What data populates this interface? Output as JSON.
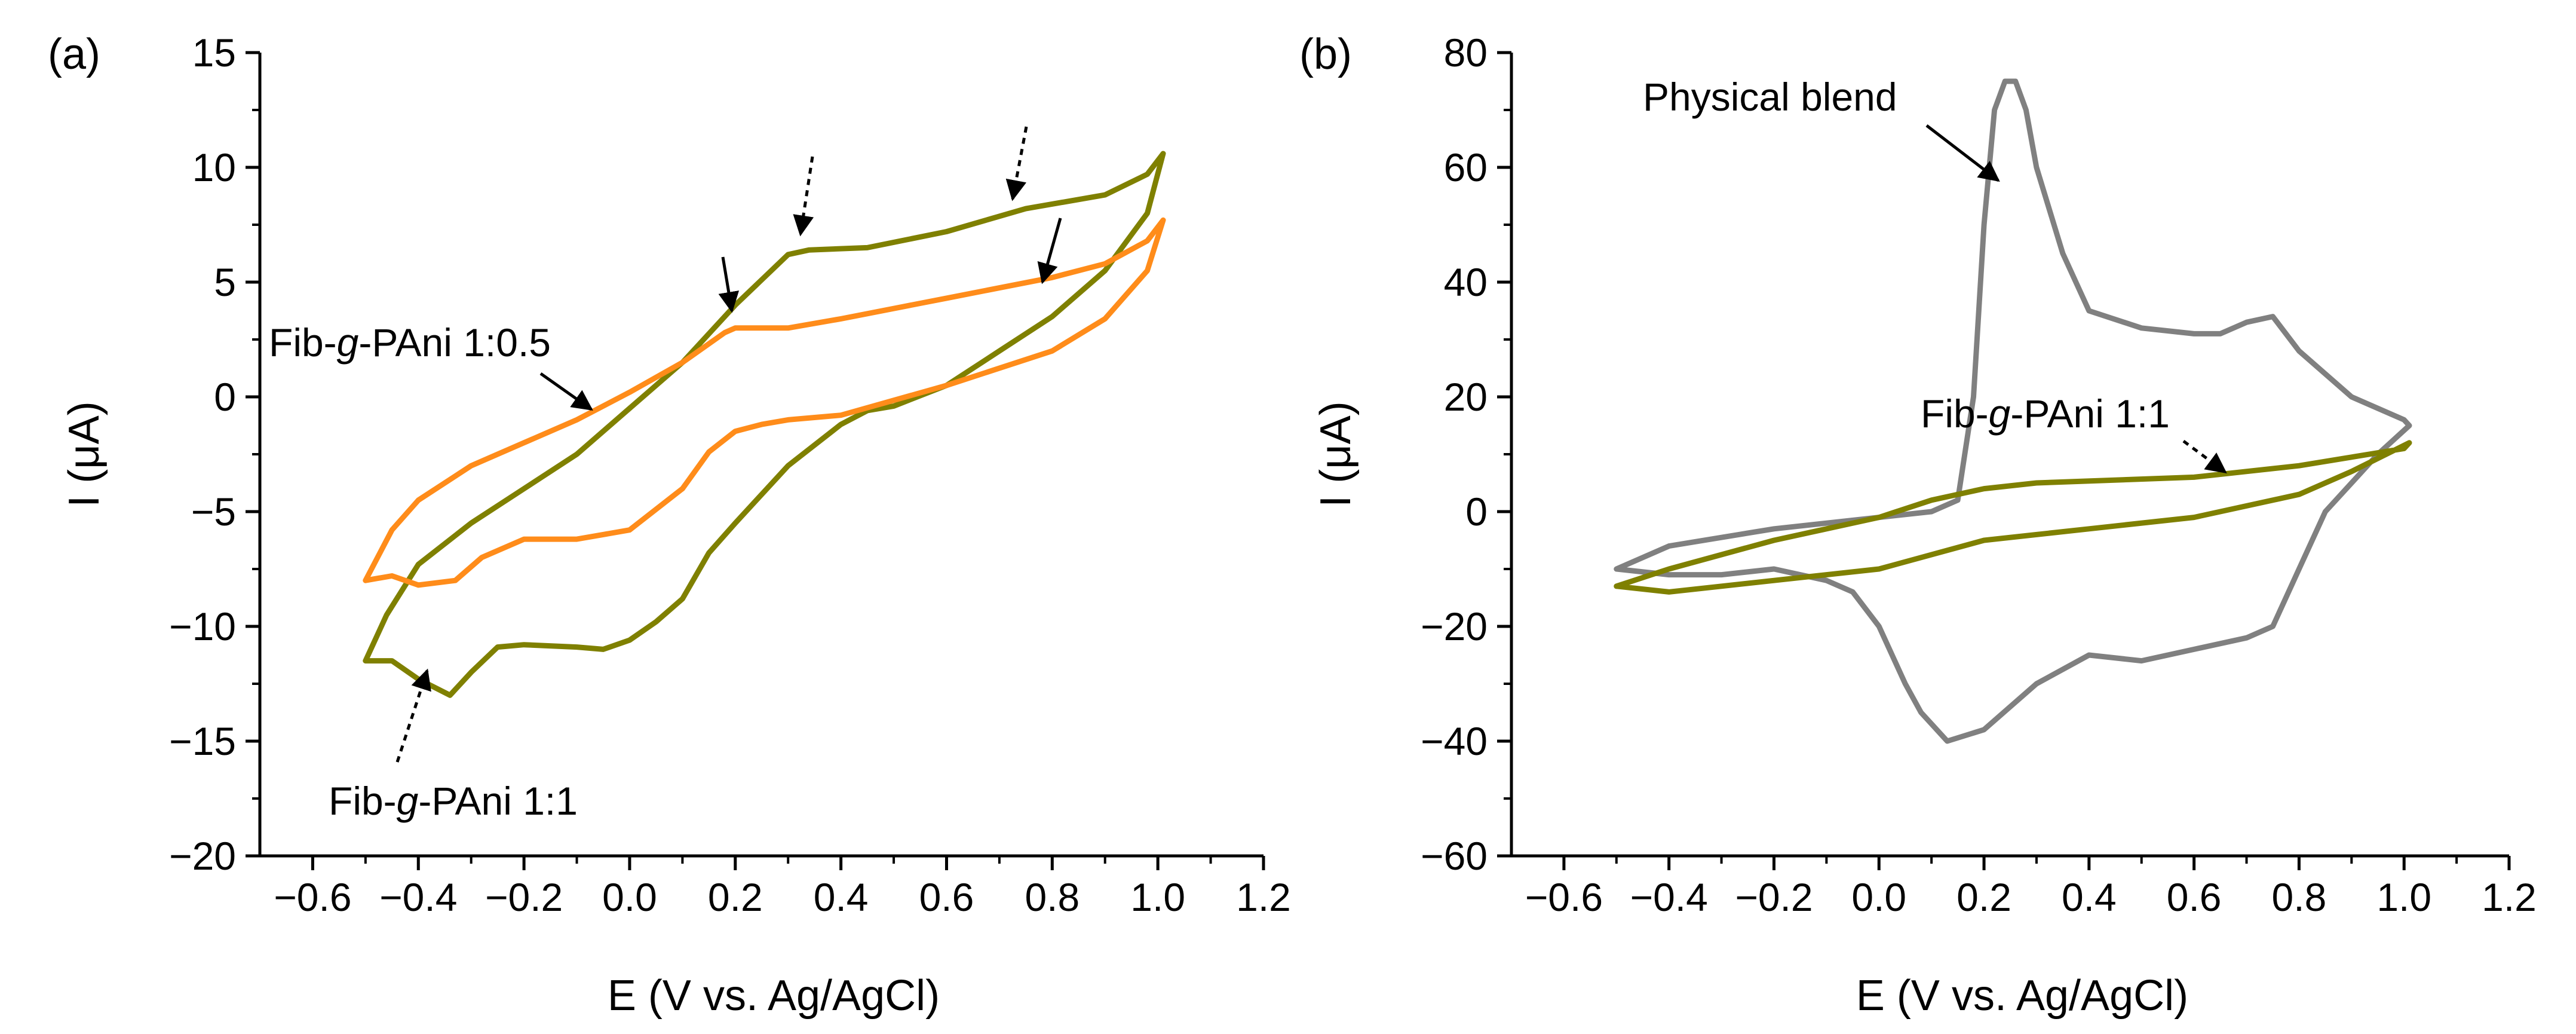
{
  "chart_data": [
    {
      "type": "line",
      "panel_label": "(a)",
      "xlabel": "E (V vs. Ag/AgCl)",
      "ylabel": "I (μA)",
      "xlim": [
        -0.7,
        1.2
      ],
      "ylim": [
        -20,
        15
      ],
      "xticks": [
        -0.6,
        -0.4,
        -0.2,
        0.0,
        0.2,
        0.4,
        0.6,
        0.8,
        1.0,
        1.2
      ],
      "xtick_labels": [
        "−0.6",
        "−0.4",
        "−0.2",
        "0.0",
        "0.2",
        "0.4",
        "0.6",
        "0.8",
        "1.0",
        "1.2"
      ],
      "yticks": [
        -20,
        -15,
        -10,
        -5,
        0,
        5,
        10,
        15
      ],
      "ytick_labels": [
        "−20",
        "−15",
        "−10",
        "−5",
        "0",
        "5",
        "10",
        "15"
      ],
      "grid": false,
      "series": [
        {
          "name": "Fib-g-PAni 1:1",
          "color": "#7f8000",
          "x": [
            -0.5,
            -0.46,
            -0.4,
            -0.3,
            -0.2,
            -0.1,
            0.0,
            0.1,
            0.2,
            0.3,
            0.34,
            0.45,
            0.6,
            0.75,
            0.9,
            0.98,
            1.01,
            0.98,
            0.9,
            0.8,
            0.7,
            0.6,
            0.5,
            0.45,
            0.4,
            0.3,
            0.2,
            0.15,
            0.1,
            0.05,
            0.0,
            -0.05,
            -0.1,
            -0.2,
            -0.25,
            -0.3,
            -0.34,
            -0.4,
            -0.45,
            -0.5
          ],
          "y": [
            -11.5,
            -9.5,
            -7.3,
            -5.5,
            -4.0,
            -2.5,
            -0.5,
            1.5,
            4.0,
            6.2,
            6.4,
            6.5,
            7.2,
            8.2,
            8.8,
            9.7,
            10.6,
            8.0,
            5.5,
            3.5,
            2.0,
            0.5,
            -0.4,
            -0.6,
            -1.2,
            -3.0,
            -5.5,
            -6.8,
            -8.8,
            -9.8,
            -10.6,
            -11.0,
            -10.9,
            -10.8,
            -10.9,
            -12.0,
            -13.0,
            -12.3,
            -11.5,
            -11.5
          ]
        },
        {
          "name": "Fib-g-PAni 1:0.5",
          "color": "#ff8c1a",
          "x": [
            -0.5,
            -0.45,
            -0.4,
            -0.3,
            -0.2,
            -0.1,
            0.0,
            0.1,
            0.18,
            0.2,
            0.3,
            0.4,
            0.6,
            0.8,
            0.9,
            0.98,
            1.01,
            0.98,
            0.9,
            0.8,
            0.6,
            0.4,
            0.3,
            0.25,
            0.2,
            0.15,
            0.1,
            0.0,
            -0.1,
            -0.2,
            -0.28,
            -0.33,
            -0.4,
            -0.45,
            -0.5
          ],
          "y": [
            -8.0,
            -5.8,
            -4.5,
            -3.0,
            -2.0,
            -1.0,
            0.2,
            1.5,
            2.8,
            3.0,
            3.0,
            3.4,
            4.3,
            5.2,
            5.8,
            6.8,
            7.7,
            5.5,
            3.4,
            2.0,
            0.5,
            -0.8,
            -1.0,
            -1.2,
            -1.5,
            -2.4,
            -4.0,
            -5.8,
            -6.2,
            -6.2,
            -7.0,
            -8.0,
            -8.2,
            -7.8,
            -8.0
          ]
        }
      ],
      "annotations": [
        {
          "text": "Fib-g-PAni 1:0.5",
          "target_series": "Fib-g-PAni 1:0.5",
          "arrow": "solid"
        },
        {
          "text": "Fib-g-PAni 1:1",
          "target_series": "Fib-g-PAni 1:1",
          "arrow": "dotted"
        }
      ],
      "peak_arrows": [
        {
          "style": "solid",
          "x": 0.2,
          "y": 2.8
        },
        {
          "style": "solid",
          "x": 0.8,
          "y": 4.9
        },
        {
          "style": "dotted",
          "x": 0.34,
          "y": 7.0
        },
        {
          "style": "dotted",
          "x": 0.74,
          "y": 8.5
        }
      ]
    },
    {
      "type": "line",
      "panel_label": "(b)",
      "xlabel": "E (V vs. Ag/AgCl)",
      "ylabel": "I (μA)",
      "xlim": [
        -0.7,
        1.2
      ],
      "ylim": [
        -60,
        80
      ],
      "xticks": [
        -0.6,
        -0.4,
        -0.2,
        0.0,
        0.2,
        0.4,
        0.6,
        0.8,
        1.0,
        1.2
      ],
      "xtick_labels": [
        "−0.6",
        "−0.4",
        "−0.2",
        "0.0",
        "0.2",
        "0.4",
        "0.6",
        "0.8",
        "1.0",
        "1.2"
      ],
      "yticks": [
        -60,
        -40,
        -20,
        0,
        20,
        40,
        60,
        80
      ],
      "ytick_labels": [
        "−60",
        "−40",
        "−20",
        "0",
        "20",
        "40",
        "60",
        "80"
      ],
      "grid": false,
      "series": [
        {
          "name": "Physical blend",
          "color": "#808080",
          "x": [
            -0.5,
            -0.4,
            -0.2,
            0.0,
            0.1,
            0.15,
            0.18,
            0.2,
            0.22,
            0.24,
            0.26,
            0.28,
            0.3,
            0.35,
            0.4,
            0.5,
            0.6,
            0.65,
            0.7,
            0.75,
            0.8,
            0.9,
            1.0,
            1.01,
            0.95,
            0.85,
            0.8,
            0.75,
            0.7,
            0.6,
            0.5,
            0.4,
            0.3,
            0.2,
            0.13,
            0.08,
            0.05,
            0.0,
            -0.05,
            -0.1,
            -0.2,
            -0.3,
            -0.4,
            -0.5
          ],
          "y": [
            -10,
            -6,
            -3,
            -1,
            0,
            2,
            20,
            50,
            70,
            75,
            75,
            70,
            60,
            45,
            35,
            32,
            31,
            31,
            33,
            34,
            28,
            20,
            16,
            15,
            10,
            0,
            -10,
            -20,
            -22,
            -24,
            -26,
            -25,
            -30,
            -38,
            -40,
            -35,
            -30,
            -20,
            -14,
            -12,
            -10,
            -11,
            -11,
            -10
          ]
        },
        {
          "name": "Fib-g-PAni 1:1",
          "color": "#7f8000",
          "x": [
            -0.5,
            -0.4,
            -0.2,
            0.0,
            0.1,
            0.2,
            0.3,
            0.6,
            0.8,
            1.0,
            1.01,
            0.9,
            0.8,
            0.6,
            0.4,
            0.2,
            0.0,
            -0.2,
            -0.3,
            -0.4,
            -0.5
          ],
          "y": [
            -13,
            -10,
            -5,
            -1,
            2,
            4,
            5,
            6,
            8,
            11,
            12,
            7,
            3,
            -1,
            -3,
            -5,
            -10,
            -12,
            -13,
            -14,
            -13
          ]
        }
      ],
      "annotations": [
        {
          "text": "Physical blend",
          "target_series": "Physical blend",
          "arrow": "solid"
        },
        {
          "text": "Fib-g-PAni 1:1",
          "target_series": "Fib-g-PAni 1:1",
          "arrow": "dotted"
        }
      ]
    }
  ]
}
